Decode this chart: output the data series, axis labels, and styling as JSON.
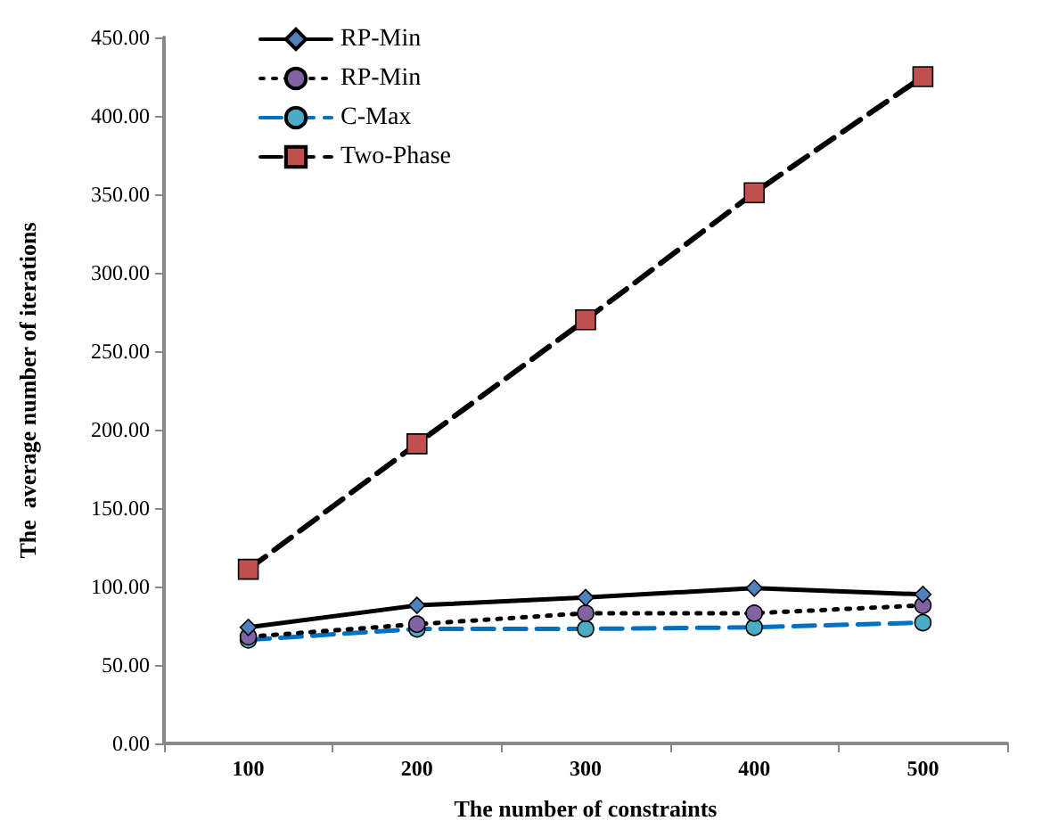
{
  "chart_data": {
    "type": "line",
    "xlabel": "The number of constraints",
    "ylabel": "The  average number of iterations",
    "categories": [
      "100",
      "200",
      "300",
      "400",
      "500"
    ],
    "ylim": [
      0,
      450
    ],
    "yticks": [
      {
        "value": 0,
        "label": "0.00"
      },
      {
        "value": 50,
        "label": "50.00"
      },
      {
        "value": 100,
        "label": "100.00"
      },
      {
        "value": 150,
        "label": "150.00"
      },
      {
        "value": 200,
        "label": "200.00"
      },
      {
        "value": 250,
        "label": "250.00"
      },
      {
        "value": 300,
        "label": "300.00"
      },
      {
        "value": 350,
        "label": "350.00"
      },
      {
        "value": 400,
        "label": "400.00"
      },
      {
        "value": 450,
        "label": "450.00"
      }
    ],
    "grid": false,
    "legend": "top left",
    "series": [
      {
        "name": "RP-Min",
        "color": "#4f81bd",
        "marker": "diamond",
        "line_style": "solid",
        "values": [
          74,
          88,
          93,
          99,
          95
        ]
      },
      {
        "name": "RP-Min",
        "color": "#8064a2",
        "marker": "circle",
        "line_style": "dotted",
        "values": [
          68,
          76,
          83,
          83,
          88
        ]
      },
      {
        "name": "C-Max",
        "color": "#4bacc6",
        "marker": "circle",
        "line_style": "dashed",
        "values": [
          66,
          73,
          73,
          74,
          77
        ]
      },
      {
        "name": "Two-Phase",
        "color": "#c0504d",
        "marker": "square",
        "line_style": "dashed",
        "values": [
          111,
          191,
          270,
          351,
          425
        ]
      }
    ]
  }
}
